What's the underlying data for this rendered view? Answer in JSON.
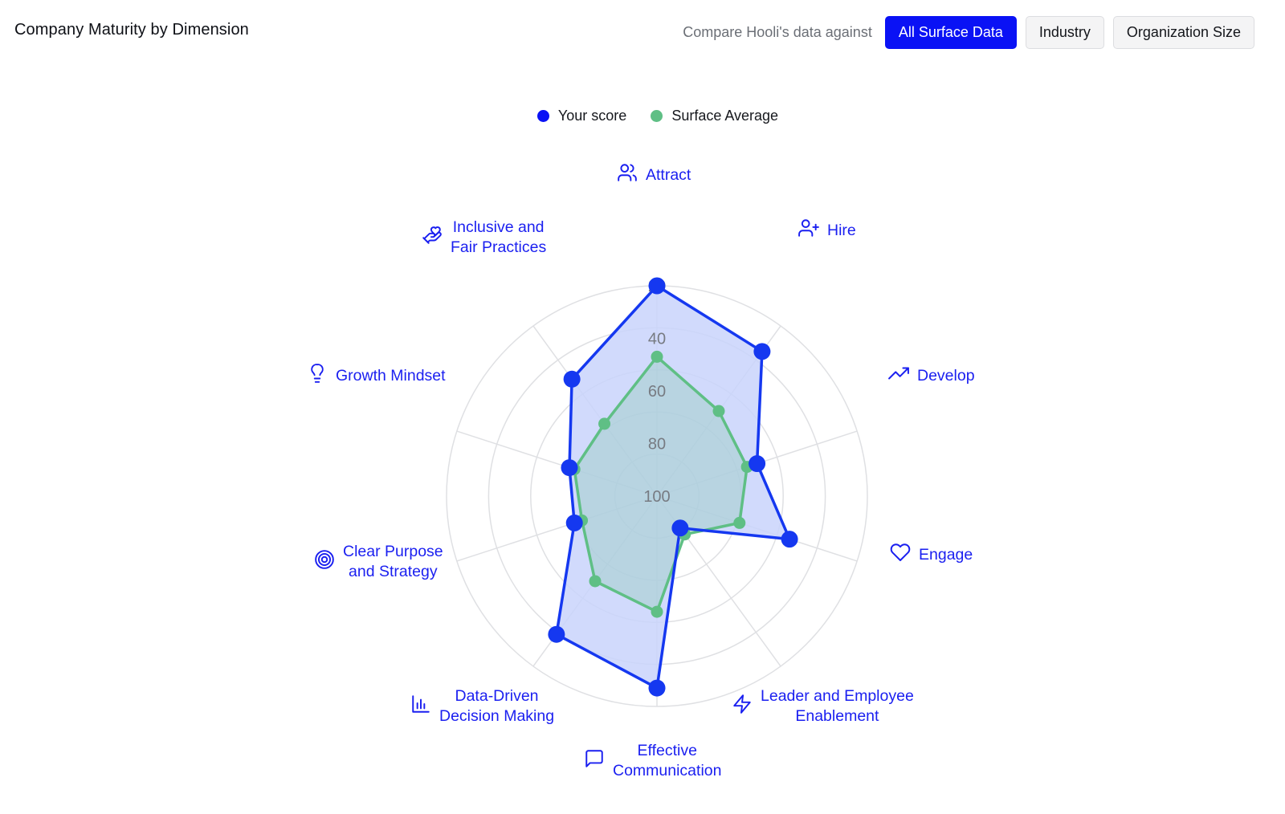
{
  "header": {
    "title": "Company Maturity by Dimension",
    "compare_label": "Compare Hooli's data against",
    "buttons": [
      {
        "label": "All Surface Data",
        "active": true
      },
      {
        "label": "Industry",
        "active": false
      },
      {
        "label": "Organization Size",
        "active": false
      }
    ]
  },
  "colors": {
    "accent": "#0a12f5",
    "your_score_line": "#1538f0",
    "your_score_fill": "#c9d4fb",
    "surface_average": "#5fbf85",
    "grid": "#dfe0e3",
    "label": "#1a1ff0"
  },
  "dimensions": [
    {
      "line1": "Attract",
      "line2": "",
      "icon": "users-icon"
    },
    {
      "line1": "Hire",
      "line2": "",
      "icon": "user-plus-icon"
    },
    {
      "line1": "Develop",
      "line2": "",
      "icon": "trending-up-icon"
    },
    {
      "line1": "Engage",
      "line2": "",
      "icon": "heart-icon"
    },
    {
      "line1": "Leader and Employee",
      "line2": "Enablement",
      "icon": "zap-icon"
    },
    {
      "line1": "Effective",
      "line2": "Communication",
      "icon": "message-square-icon"
    },
    {
      "line1": "Data-Driven",
      "line2": "Decision Making",
      "icon": "bar-chart-icon"
    },
    {
      "line1": "Clear Purpose",
      "line2": "and Strategy",
      "icon": "target-icon"
    },
    {
      "line1": "Growth Mindset",
      "line2": "",
      "icon": "lightbulb-icon"
    },
    {
      "line1": "Inclusive and",
      "line2": "Fair Practices",
      "icon": "hand-heart-icon"
    }
  ],
  "chart_data": {
    "type": "radar",
    "title": "",
    "categories": [
      "Attract",
      "Hire",
      "Develop",
      "Engage",
      "Leader and Employee Enablement",
      "Effective Communication",
      "Data-Driven Decision Making",
      "Clear Purpose and Strategy",
      "Growth Mindset",
      "Inclusive and Fair Practices"
    ],
    "radial_ticks": [
      "20",
      "40",
      "60",
      "80",
      "100"
    ],
    "radial_tick_values": [
      20,
      40,
      60,
      80,
      100
    ],
    "range": [
      100,
      20
    ],
    "grid": true,
    "legend_position": "top-center",
    "series": [
      {
        "name": "Your score",
        "color": "#1538f0",
        "values": [
          20,
          32,
          60,
          47,
          85,
          27,
          35,
          67,
          65,
          45
        ]
      },
      {
        "name": "Surface Average",
        "color": "#5fbf85",
        "values": [
          47,
          60,
          64,
          67,
          82,
          56,
          60,
          70,
          67,
          66
        ]
      }
    ]
  }
}
